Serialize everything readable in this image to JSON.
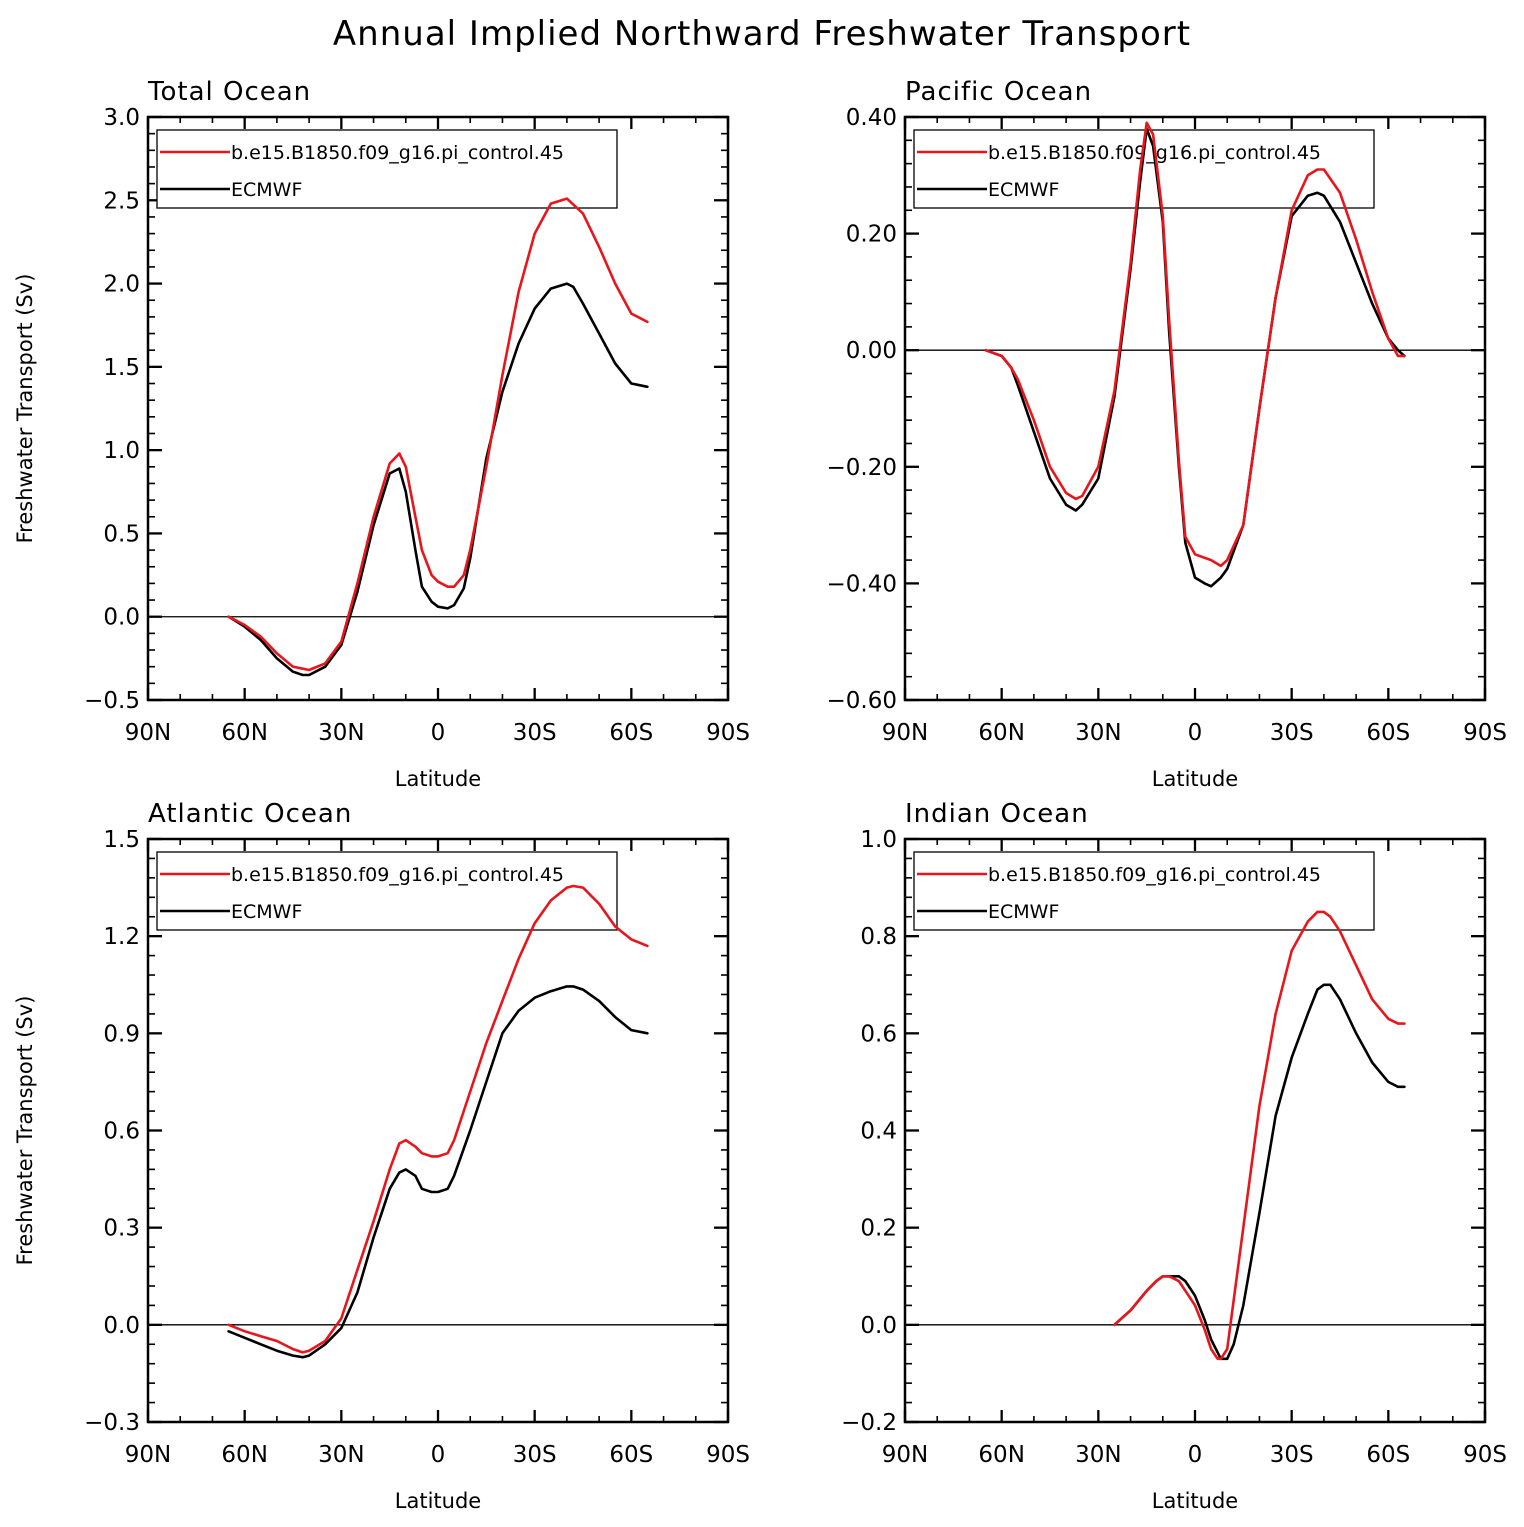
{
  "title": "Annual Implied Northward Freshwater Transport",
  "colors": {
    "model": "#e8161c",
    "obs": "#000000"
  },
  "chart_data": [
    {
      "type": "line",
      "title": "Total Ocean",
      "xlabel": "Latitude",
      "ylabel": "Freshwater Transport (Sv)",
      "xlim": [
        90,
        -90
      ],
      "ylim": [
        -0.5,
        3.0
      ],
      "x_ticks": [
        90,
        60,
        30,
        0,
        -30,
        -60,
        -90
      ],
      "x_tick_labels": [
        "90N",
        "60N",
        "30N",
        "0",
        "30S",
        "60S",
        "90S"
      ],
      "y_ticks": [
        -0.5,
        0.0,
        0.5,
        1.0,
        1.5,
        2.0,
        2.5,
        3.0
      ],
      "y_tick_labels": [
        "−0.5",
        "0.0",
        "0.5",
        "1.0",
        "1.5",
        "2.0",
        "2.5",
        "3.0"
      ],
      "legend_position": "top-left",
      "series": [
        {
          "name": "b.e15.B1850.f09_g16.pi_control.45",
          "color": "#e8161c",
          "x": [
            65,
            60,
            55,
            50,
            45,
            40,
            35,
            30,
            25,
            20,
            15,
            12,
            10,
            7,
            5,
            2,
            0,
            -3,
            -5,
            -8,
            -10,
            -15,
            -20,
            -25,
            -30,
            -35,
            -40,
            -45,
            -50,
            -55,
            -60,
            -65
          ],
          "y": [
            0.0,
            -0.05,
            -0.12,
            -0.22,
            -0.3,
            -0.32,
            -0.28,
            -0.15,
            0.2,
            0.6,
            0.92,
            0.98,
            0.9,
            0.6,
            0.4,
            0.25,
            0.21,
            0.18,
            0.18,
            0.25,
            0.4,
            0.9,
            1.45,
            1.95,
            2.3,
            2.48,
            2.51,
            2.42,
            2.22,
            2.0,
            1.82,
            1.77
          ]
        },
        {
          "name": "ECMWF",
          "color": "#000000",
          "x": [
            65,
            60,
            55,
            50,
            45,
            42,
            40,
            35,
            30,
            25,
            20,
            15,
            12,
            10,
            7,
            5,
            2,
            0,
            -3,
            -5,
            -8,
            -10,
            -15,
            -20,
            -25,
            -30,
            -35,
            -40,
            -42,
            -45,
            -50,
            -55,
            -60,
            -65
          ],
          "y": [
            0.0,
            -0.06,
            -0.14,
            -0.25,
            -0.33,
            -0.35,
            -0.35,
            -0.3,
            -0.17,
            0.15,
            0.55,
            0.86,
            0.89,
            0.75,
            0.4,
            0.18,
            0.09,
            0.06,
            0.05,
            0.07,
            0.17,
            0.35,
            0.95,
            1.35,
            1.64,
            1.85,
            1.97,
            2.0,
            1.98,
            1.88,
            1.7,
            1.52,
            1.4,
            1.38
          ]
        }
      ]
    },
    {
      "type": "line",
      "title": "Pacific Ocean",
      "xlabel": "Latitude",
      "ylabel": "",
      "xlim": [
        90,
        -90
      ],
      "ylim": [
        -0.6,
        0.4
      ],
      "x_ticks": [
        90,
        60,
        30,
        0,
        -30,
        -60,
        -90
      ],
      "x_tick_labels": [
        "90N",
        "60N",
        "30N",
        "0",
        "30S",
        "60S",
        "90S"
      ],
      "y_ticks": [
        -0.6,
        -0.4,
        -0.2,
        0.0,
        0.2,
        0.4
      ],
      "y_tick_labels": [
        "−0.60",
        "−0.40",
        "−0.20",
        "0.00",
        "0.20",
        "0.40"
      ],
      "legend_position": "top-left",
      "series": [
        {
          "name": "b.e15.B1850.f09_g16.pi_control.45",
          "color": "#e8161c",
          "x": [
            65,
            60,
            57,
            55,
            50,
            45,
            40,
            37,
            35,
            30,
            25,
            20,
            17,
            15,
            13,
            10,
            8,
            5,
            3,
            0,
            -5,
            -8,
            -10,
            -15,
            -20,
            -25,
            -30,
            -35,
            -38,
            -40,
            -45,
            -50,
            -55,
            -60,
            -63,
            -65
          ],
          "y": [
            0.0,
            -0.01,
            -0.03,
            -0.05,
            -0.12,
            -0.2,
            -0.245,
            -0.255,
            -0.25,
            -0.2,
            -0.07,
            0.15,
            0.31,
            0.39,
            0.37,
            0.23,
            0.05,
            -0.19,
            -0.32,
            -0.35,
            -0.36,
            -0.37,
            -0.36,
            -0.3,
            -0.1,
            0.09,
            0.24,
            0.3,
            0.31,
            0.31,
            0.27,
            0.19,
            0.1,
            0.02,
            -0.01,
            -0.01
          ]
        },
        {
          "name": "ECMWF",
          "color": "#000000",
          "x": [
            65,
            60,
            57,
            55,
            50,
            45,
            40,
            37,
            35,
            30,
            25,
            20,
            17,
            15,
            13,
            10,
            8,
            5,
            3,
            0,
            -3,
            -5,
            -8,
            -10,
            -15,
            -20,
            -25,
            -30,
            -35,
            -38,
            -40,
            -45,
            -50,
            -55,
            -60,
            -63,
            -65
          ],
          "y": [
            0.0,
            -0.01,
            -0.03,
            -0.06,
            -0.14,
            -0.22,
            -0.265,
            -0.275,
            -0.265,
            -0.22,
            -0.08,
            0.14,
            0.29,
            0.38,
            0.35,
            0.22,
            0.03,
            -0.2,
            -0.33,
            -0.39,
            -0.4,
            -0.405,
            -0.39,
            -0.375,
            -0.3,
            -0.1,
            0.09,
            0.23,
            0.265,
            0.27,
            0.265,
            0.22,
            0.15,
            0.08,
            0.02,
            0.0,
            -0.01
          ]
        }
      ]
    },
    {
      "type": "line",
      "title": "Atlantic Ocean",
      "xlabel": "Latitude",
      "ylabel": "Freshwater Transport (Sv)",
      "xlim": [
        90,
        -90
      ],
      "ylim": [
        -0.3,
        1.5
      ],
      "x_ticks": [
        90,
        60,
        30,
        0,
        -30,
        -60,
        -90
      ],
      "x_tick_labels": [
        "90N",
        "60N",
        "30N",
        "0",
        "30S",
        "60S",
        "90S"
      ],
      "y_ticks": [
        -0.3,
        0.0,
        0.3,
        0.6,
        0.9,
        1.2,
        1.5
      ],
      "y_tick_labels": [
        "−0.3",
        "0.0",
        "0.3",
        "0.6",
        "0.9",
        "1.2",
        "1.5"
      ],
      "legend_position": "top-left",
      "series": [
        {
          "name": "b.e15.B1850.f09_g16.pi_control.45",
          "color": "#e8161c",
          "x": [
            65,
            60,
            55,
            50,
            45,
            42,
            40,
            35,
            30,
            25,
            20,
            15,
            12,
            10,
            7,
            5,
            2,
            0,
            -3,
            -5,
            -10,
            -15,
            -20,
            -25,
            -30,
            -35,
            -40,
            -42,
            -45,
            -50,
            -55,
            -60,
            -65
          ],
          "y": [
            0.0,
            -0.02,
            -0.035,
            -0.05,
            -0.075,
            -0.085,
            -0.08,
            -0.05,
            0.02,
            0.17,
            0.32,
            0.48,
            0.56,
            0.57,
            0.55,
            0.53,
            0.52,
            0.52,
            0.53,
            0.57,
            0.72,
            0.87,
            1.0,
            1.13,
            1.24,
            1.31,
            1.35,
            1.355,
            1.35,
            1.3,
            1.23,
            1.19,
            1.17
          ]
        },
        {
          "name": "ECMWF",
          "color": "#000000",
          "x": [
            65,
            60,
            55,
            50,
            45,
            42,
            40,
            35,
            30,
            25,
            20,
            15,
            12,
            10,
            7,
            5,
            2,
            0,
            -3,
            -5,
            -10,
            -15,
            -20,
            -25,
            -30,
            -35,
            -40,
            -42,
            -45,
            -50,
            -55,
            -60,
            -65
          ],
          "y": [
            -0.02,
            -0.04,
            -0.06,
            -0.08,
            -0.095,
            -0.1,
            -0.095,
            -0.06,
            -0.01,
            0.1,
            0.27,
            0.42,
            0.47,
            0.48,
            0.46,
            0.42,
            0.41,
            0.41,
            0.42,
            0.46,
            0.6,
            0.75,
            0.9,
            0.97,
            1.01,
            1.03,
            1.045,
            1.045,
            1.035,
            1.0,
            0.95,
            0.91,
            0.9
          ]
        }
      ]
    },
    {
      "type": "line",
      "title": "Indian Ocean",
      "xlabel": "Latitude",
      "ylabel": "",
      "xlim": [
        90,
        -90
      ],
      "ylim": [
        -0.2,
        1.0
      ],
      "x_ticks": [
        90,
        60,
        30,
        0,
        -30,
        -60,
        -90
      ],
      "x_tick_labels": [
        "90N",
        "60N",
        "30N",
        "0",
        "30S",
        "60S",
        "90S"
      ],
      "y_ticks": [
        -0.2,
        0.0,
        0.2,
        0.4,
        0.6,
        0.8,
        1.0
      ],
      "y_tick_labels": [
        "−0.2",
        "0.0",
        "0.2",
        "0.4",
        "0.6",
        "0.8",
        "1.0"
      ],
      "legend_position": "top-left",
      "series": [
        {
          "name": "b.e15.B1850.f09_g16.pi_control.45",
          "color": "#e8161c",
          "x": [
            25,
            20,
            15,
            12,
            10,
            8,
            5,
            2,
            0,
            -3,
            -5,
            -7,
            -8,
            -10,
            -15,
            -20,
            -25,
            -30,
            -35,
            -38,
            -40,
            -42,
            -45,
            -50,
            -55,
            -60,
            -63,
            -65
          ],
          "y": [
            0.0,
            0.03,
            0.07,
            0.09,
            0.1,
            0.1,
            0.09,
            0.06,
            0.04,
            -0.01,
            -0.05,
            -0.07,
            -0.07,
            -0.05,
            0.2,
            0.45,
            0.64,
            0.77,
            0.83,
            0.85,
            0.85,
            0.84,
            0.81,
            0.74,
            0.67,
            0.63,
            0.62,
            0.62
          ]
        },
        {
          "name": "ECMWF",
          "color": "#000000",
          "x": [
            25,
            20,
            15,
            12,
            10,
            8,
            5,
            3,
            2,
            0,
            -3,
            -5,
            -8,
            -10,
            -12,
            -15,
            -20,
            -25,
            -30,
            -35,
            -38,
            -40,
            -42,
            -45,
            -50,
            -55,
            -60,
            -63,
            -65
          ],
          "y": [
            0.0,
            0.03,
            0.07,
            0.09,
            0.1,
            0.1,
            0.1,
            0.09,
            0.08,
            0.06,
            0.01,
            -0.03,
            -0.07,
            -0.07,
            -0.04,
            0.04,
            0.23,
            0.43,
            0.55,
            0.64,
            0.69,
            0.7,
            0.7,
            0.67,
            0.6,
            0.54,
            0.5,
            0.49,
            0.49
          ]
        }
      ]
    }
  ]
}
